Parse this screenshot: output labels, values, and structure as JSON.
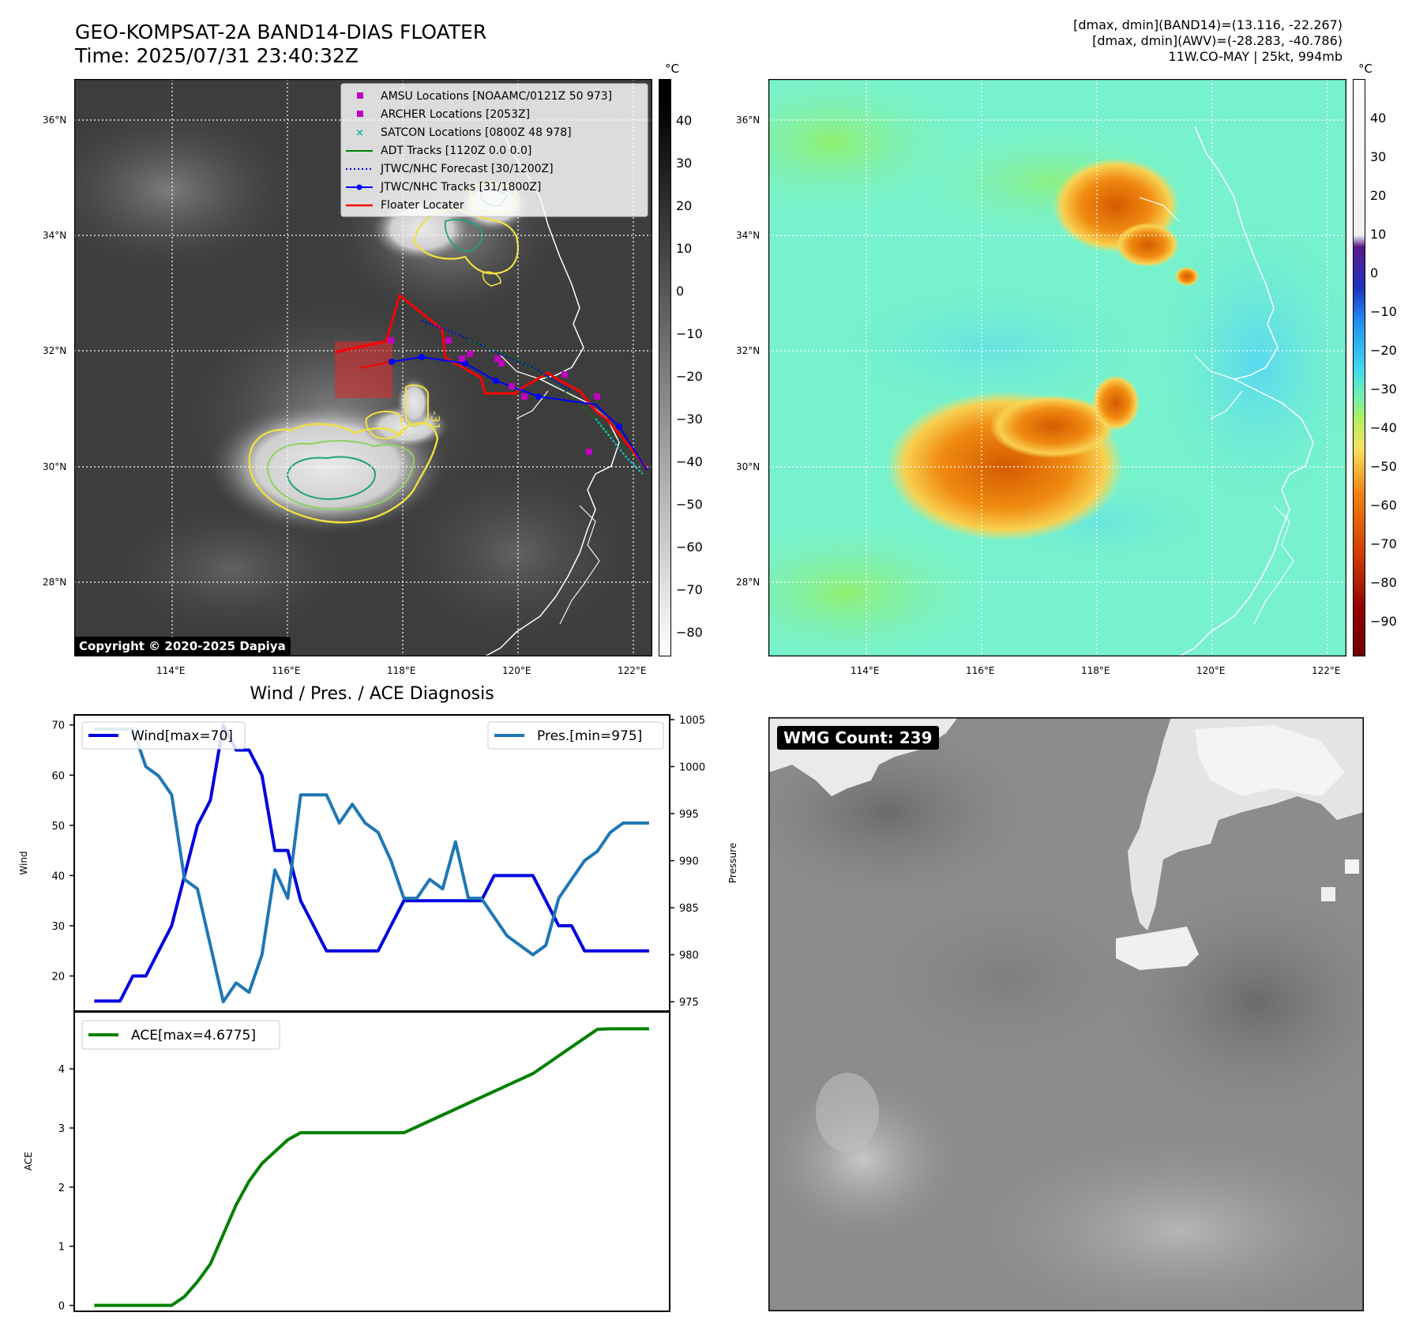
{
  "header": {
    "title_line1": "GEO-KOMPSAT-2A BAND14-DIAS FLOATER",
    "title_line2": "Time: 2025/07/31 23:40:32Z",
    "info_line1": "[dmax, dmin](BAND14)=(13.116, -22.267)",
    "info_line2": "[dmax, dmin](AWV)=(-28.283, -40.786)",
    "info_line3": "11W.CO-MAY | 25kt, 994mb"
  },
  "maps": {
    "lat_labels": [
      "36°N",
      "34°N",
      "32°N",
      "30°N",
      "28°N"
    ],
    "lon_labels": [
      "114°E",
      "116°E",
      "118°E",
      "120°E",
      "122°E"
    ],
    "copyright": "Copyright © 2020-2025 Dapiya",
    "contour_label": "-31",
    "colorbar_unit": "°C",
    "ir_colorbar_ticks": [
      "40",
      "30",
      "20",
      "10",
      "0",
      "−10",
      "−20",
      "−30",
      "−40",
      "−50",
      "−60",
      "−70",
      "−80"
    ],
    "wv_colorbar_ticks": [
      "40",
      "30",
      "20",
      "10",
      "0",
      "−10",
      "−20",
      "−30",
      "−40",
      "−50",
      "−60",
      "−70",
      "−80",
      "−90"
    ],
    "legend": [
      {
        "label": "AMSU Locations [NOAAMC/0121Z 50 973]",
        "color": "#c000c0",
        "marker": "square"
      },
      {
        "label": "ARCHER Locations [2053Z]",
        "color": "#c000c0",
        "marker": "square"
      },
      {
        "label": "SATCON Locations [0800Z 48 978]",
        "color": "#20b0b0",
        "marker": "x"
      },
      {
        "label": "ADT Tracks [1120Z 0.0 0.0]",
        "color": "#008000",
        "marker": "line"
      },
      {
        "label": "JTWC/NHC Forecast [30/1200Z]",
        "color": "#0000ff",
        "marker": "dotted"
      },
      {
        "label": "JTWC/NHC Tracks [31/1800Z]",
        "color": "#0000ff",
        "marker": "line-dot"
      },
      {
        "label": "Floater Locater",
        "color": "#ff0000",
        "marker": "line"
      }
    ]
  },
  "wmg": {
    "label": "WMG Count: 239"
  },
  "chart_data": [
    {
      "type": "line",
      "title": "Wind / Pres. / ACE Diagnosis",
      "ylabel": "Wind",
      "ylabel_right": "Pressure",
      "x": [
        0,
        1,
        2,
        3,
        4,
        5,
        6,
        7,
        8,
        9,
        10,
        11,
        12,
        13,
        14,
        15,
        16,
        17,
        18,
        19,
        20,
        21,
        22,
        23,
        24,
        25,
        26,
        27,
        28,
        29,
        30,
        31,
        32,
        33,
        34,
        35,
        36,
        37,
        38,
        39,
        40,
        41,
        42,
        43
      ],
      "ylim": [
        13,
        72
      ],
      "ylim_right": [
        974,
        1005.5
      ],
      "yticks": [
        20,
        30,
        40,
        50,
        60,
        70
      ],
      "yticks_right": [
        975,
        980,
        985,
        990,
        995,
        1000,
        1005
      ],
      "series": [
        {
          "name": "Wind[max=70]",
          "axis": "left",
          "color": "#0000e0",
          "values": [
            15,
            15,
            15,
            20,
            20,
            25,
            30,
            40,
            50,
            55,
            70,
            65,
            65,
            60,
            45,
            45,
            35,
            30,
            25,
            25,
            25,
            25,
            25,
            30,
            35,
            35,
            35,
            35,
            35,
            35,
            35,
            40,
            40,
            40,
            40,
            35,
            30,
            30,
            25,
            25,
            25,
            25,
            25,
            25
          ]
        },
        {
          "name": "Pres.[min=975]",
          "axis": "right",
          "color": "#1f77b4",
          "values": [
            1004,
            1004,
            1004,
            1004,
            1000,
            999,
            997,
            988,
            987,
            981,
            975,
            977,
            976,
            980,
            989,
            986,
            997,
            997,
            997,
            994,
            996,
            994,
            993,
            990,
            986,
            986,
            988,
            987,
            992,
            986,
            986,
            984,
            982,
            981,
            980,
            981,
            986,
            988,
            990,
            991,
            993,
            994,
            994,
            994
          ]
        }
      ],
      "legend": [
        "Wind[max=70]",
        "Pres.[min=975]"
      ]
    },
    {
      "type": "line",
      "ylabel": "ACE",
      "x": [
        0,
        1,
        2,
        3,
        4,
        5,
        6,
        7,
        8,
        9,
        10,
        11,
        12,
        13,
        14,
        15,
        16,
        17,
        18,
        19,
        20,
        21,
        22,
        23,
        24,
        25,
        26,
        27,
        28,
        29,
        30,
        31,
        32,
        33,
        34,
        35,
        36,
        37,
        38,
        39,
        40,
        41,
        42,
        43
      ],
      "ylim": [
        -0.1,
        4.95
      ],
      "yticks": [
        0,
        1,
        2,
        3,
        4
      ],
      "series": [
        {
          "name": "ACE[max=4.6775]",
          "color": "#008000",
          "values": [
            0,
            0,
            0,
            0,
            0,
            0,
            0,
            0.15,
            0.4,
            0.7,
            1.2,
            1.7,
            2.1,
            2.4,
            2.6,
            2.8,
            2.92,
            2.92,
            2.92,
            2.92,
            2.92,
            2.92,
            2.92,
            2.92,
            2.92,
            3.02,
            3.12,
            3.22,
            3.32,
            3.42,
            3.52,
            3.62,
            3.72,
            3.82,
            3.92,
            4.07,
            4.22,
            4.37,
            4.52,
            4.67,
            4.6775,
            4.6775,
            4.6775,
            4.6775
          ]
        }
      ],
      "legend": [
        "ACE[max=4.6775]"
      ]
    }
  ]
}
